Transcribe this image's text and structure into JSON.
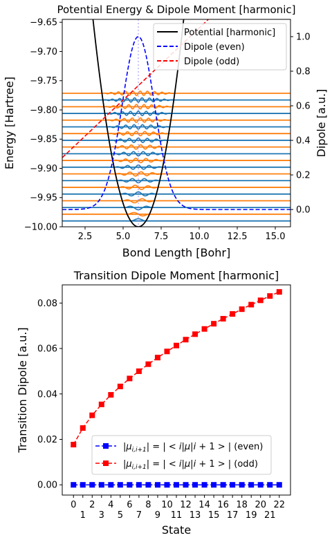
{
  "chart_data": [
    {
      "type": "line",
      "title": "Potential Energy & Dipole Moment [harmonic]",
      "xlabel": "Bond Length [Bohr]",
      "ylabel": "Energy [Hartree]",
      "ylabel_right": "Dipole [a.u.]",
      "xlim": [
        1.0,
        16.0
      ],
      "ylim": [
        -10.0,
        -9.645
      ],
      "ylim_right": [
        -0.1,
        1.1
      ],
      "xticks": [
        "2.5",
        "5.0",
        "7.5",
        "10.0",
        "12.5",
        "15.0"
      ],
      "yticks": [
        "-10.00",
        "-9.95",
        "-9.90",
        "-9.85",
        "-9.80",
        "-9.75",
        "-9.70",
        "-9.65"
      ],
      "yticks_right": [
        "0.0",
        "0.2",
        "0.4",
        "0.6",
        "0.8",
        "1.0"
      ],
      "potential": {
        "name": "Potential [harmonic]",
        "color": "#000000",
        "r0": 6.0,
        "e0": -10.0,
        "k": 0.04
      },
      "dipole_even": {
        "name": "Dipole (even)",
        "color": "#0000ff",
        "amplitude": 1.0,
        "center": 6.0,
        "width": 1.5,
        "offset": 0.0
      },
      "dipole_odd": {
        "name": "Dipole (odd)",
        "color": "#ff0000",
        "x0": 1.0,
        "y0": 0.3,
        "x1": 10.6,
        "y1": 1.1
      },
      "equilibrium_marker_x": 6.0,
      "levels": {
        "count": 20,
        "e_start": -9.99,
        "e_step": 0.0115,
        "colors": [
          "#1f77b4",
          "#ff7f0e"
        ]
      },
      "legend": {
        "position": "upper right",
        "entries": [
          "Potential [harmonic]",
          "Dipole (even)",
          "Dipole (odd)"
        ]
      }
    },
    {
      "type": "line",
      "title": "Transition Dipole Moment [harmonic]",
      "xlabel": "State",
      "ylabel": "Transition Dipole [a.u.]",
      "xlim": [
        -1.2,
        23.2
      ],
      "ylim": [
        -0.0045,
        0.088
      ],
      "xticks_top": [
        "0",
        "2",
        "4",
        "6",
        "8",
        "10",
        "12",
        "14",
        "16",
        "18",
        "20",
        "22"
      ],
      "xticks_bottom": [
        "1",
        "3",
        "5",
        "7",
        "9",
        "11",
        "13",
        "15",
        "17",
        "19",
        "21"
      ],
      "yticks": [
        "0.00",
        "0.02",
        "0.04",
        "0.06",
        "0.08"
      ],
      "x": [
        0,
        1,
        2,
        3,
        4,
        5,
        6,
        7,
        8,
        9,
        10,
        11,
        12,
        13,
        14,
        15,
        16,
        17,
        18,
        19,
        20,
        21,
        22
      ],
      "series": [
        {
          "name": "|μ_{i,i+1}| = |<i|μ|i+1>| (even)",
          "color": "#0000ff",
          "values": [
            0,
            0,
            0,
            0,
            0,
            0,
            0,
            0,
            0,
            0,
            0,
            0,
            0,
            0,
            0,
            0,
            0,
            0,
            0,
            0,
            0,
            0,
            0
          ]
        },
        {
          "name": "|μ_{i,i+1}| = |<i|μ|i+1>| (odd)",
          "color": "#ff0000",
          "values": [
            0.0177,
            0.025,
            0.0306,
            0.0354,
            0.0396,
            0.0433,
            0.0468,
            0.05,
            0.0531,
            0.056,
            0.0587,
            0.0613,
            0.0639,
            0.0663,
            0.0686,
            0.0709,
            0.0731,
            0.0752,
            0.0773,
            0.0793,
            0.0812,
            0.0831,
            0.0849
          ]
        }
      ],
      "legend": {
        "position": "lower right"
      }
    }
  ]
}
